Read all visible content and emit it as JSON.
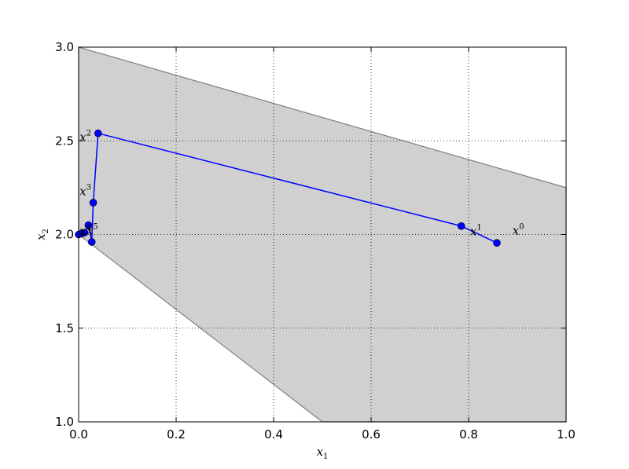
{
  "chart_data": {
    "type": "line",
    "title": "",
    "xlabel": "x",
    "xlabel_sub": "1",
    "ylabel": "x",
    "ylabel_sub": "2",
    "xlim": [
      0.0,
      1.0
    ],
    "ylim": [
      1.0,
      3.0
    ],
    "xticks": [
      "0.0",
      "0.2",
      "0.4",
      "0.6",
      "0.8",
      "1.0"
    ],
    "yticks": [
      "1.0",
      "1.5",
      "2.0",
      "2.5",
      "3.0"
    ],
    "grid": true,
    "feasible_region": {
      "polygon": [
        [
          0.0,
          3.0
        ],
        [
          1.0,
          2.25
        ],
        [
          1.0,
          1.0
        ],
        [
          0.5,
          1.0
        ],
        [
          0.0,
          2.0
        ]
      ],
      "fill_color": "#d0d0d0",
      "edge_color": "#808080"
    },
    "series": [
      {
        "color": "#0000ff",
        "x": [
          0.858,
          0.785,
          0.04,
          0.03,
          0.027,
          0.02,
          0.012,
          0.006,
          0.0
        ],
        "y": [
          1.955,
          2.045,
          2.54,
          2.17,
          1.96,
          2.05,
          2.01,
          2.005,
          2.0
        ]
      }
    ],
    "annotations": [
      {
        "base": "x",
        "sup": "0",
        "x": 0.89,
        "y": 2.0
      },
      {
        "base": "x",
        "sup": "1",
        "x": 0.803,
        "y": 1.995
      },
      {
        "base": "x",
        "sup": "2",
        "x": 0.002,
        "y": 2.5
      },
      {
        "base": "x",
        "sup": "3",
        "x": 0.002,
        "y": 2.21
      },
      {
        "base": "x",
        "sup": "6",
        "x": 0.002,
        "y": 1.995
      },
      {
        "base": "x",
        "sup": "5",
        "x": 0.016,
        "y": 2.0
      }
    ]
  }
}
